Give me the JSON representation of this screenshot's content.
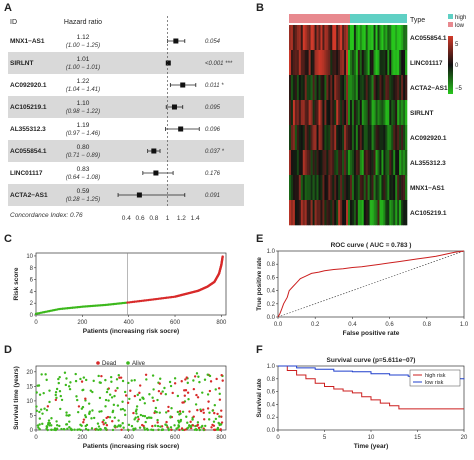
{
  "panels": {
    "a": "A",
    "b": "B",
    "c": "C",
    "d": "D",
    "e": "E",
    "f": "F"
  },
  "forest": {
    "header_id": "ID",
    "header_hr": "Hazard ratio",
    "rows": [
      {
        "id": "MNX1−AS1",
        "hr": "1.12",
        "ci": "(1.00 − 1.25)",
        "p": "0.054",
        "est": 1.12,
        "lo": 1.0,
        "hi": 1.25,
        "shaded": false
      },
      {
        "id": "SIRLNT",
        "hr": "1.01",
        "ci": "(1.00 − 1.01)",
        "p": "<0.001 ***",
        "est": 1.01,
        "lo": 1.0,
        "hi": 1.01,
        "shaded": true
      },
      {
        "id": "AC092920.1",
        "hr": "1.22",
        "ci": "(1.04 − 1.41)",
        "p": "0.011 *",
        "est": 1.22,
        "lo": 1.04,
        "hi": 1.41,
        "shaded": false
      },
      {
        "id": "AC105219.1",
        "hr": "1.10",
        "ci": "(0.98 − 1.22)",
        "p": "0.095",
        "est": 1.1,
        "lo": 0.98,
        "hi": 1.22,
        "shaded": true
      },
      {
        "id": "AL355312.3",
        "hr": "1.19",
        "ci": "(0.97 − 1.46)",
        "p": "0.096",
        "est": 1.19,
        "lo": 0.97,
        "hi": 1.46,
        "shaded": false
      },
      {
        "id": "AC055854.1",
        "hr": "0.80",
        "ci": "(0.71 − 0.89)",
        "p": "0.037 *",
        "est": 0.8,
        "lo": 0.71,
        "hi": 0.89,
        "shaded": true
      },
      {
        "id": "LINC01117",
        "hr": "0.83",
        "ci": "(0.64 − 1.08)",
        "p": "0.176",
        "est": 0.83,
        "lo": 0.64,
        "hi": 1.08,
        "shaded": false
      },
      {
        "id": "ACTA2−AS1",
        "hr": "0.59",
        "ci": "(0.28 − 1.25)",
        "p": "0.091",
        "est": 0.59,
        "lo": 0.28,
        "hi": 1.25,
        "shaded": true
      }
    ],
    "concordance": "Concordance Index: 0.76",
    "ticks": [
      "0.4",
      "0.6",
      "0.8",
      "1",
      "1.2",
      "1.4"
    ],
    "tick_values": [
      0.4,
      0.6,
      0.8,
      1.0,
      1.2,
      1.4
    ],
    "xlim": [
      0.25,
      1.5
    ]
  },
  "heatmap": {
    "type_label": "Type",
    "legend_high": "high",
    "legend_low": "low",
    "scale": [
      "5",
      "0",
      "−5"
    ],
    "genes": [
      "AC055854.1",
      "LINC01117",
      "ACTA2−AS1",
      "SIRLNT",
      "AC092920.1",
      "AL355312.3",
      "MNX1−AS1",
      "AC105219.1"
    ],
    "colors": {
      "high": "#e8898f",
      "low": "#5fd0c4",
      "pos": "#d23a2a",
      "neg": "#27c61c",
      "mid": "#111111"
    }
  },
  "chart_data": [
    {
      "type": "scatter",
      "panel": "C",
      "xlabel": "Patients (increasing risk socre)",
      "ylabel": "Risk score",
      "xticks": [
        "0",
        "200",
        "400",
        "600",
        "800"
      ],
      "yticks": [
        "0",
        "2",
        "4",
        "6",
        "8",
        "10"
      ],
      "xlim": [
        0,
        820
      ],
      "ylim": [
        0,
        10.5
      ],
      "cutoff_x": 395,
      "series": [
        {
          "color": "#3cb81c",
          "x": [
            0,
            100,
            200,
            300,
            395
          ],
          "y": [
            0.2,
            1.0,
            1.4,
            1.7,
            2.1
          ]
        },
        {
          "color": "#d82a2a",
          "x": [
            395,
            500,
            600,
            650,
            700,
            740,
            770,
            790,
            800,
            806
          ],
          "y": [
            2.1,
            2.6,
            3.1,
            3.6,
            4.1,
            4.8,
            5.6,
            7.0,
            8.5,
            10
          ]
        }
      ]
    },
    {
      "type": "scatter",
      "panel": "D",
      "xlabel": "Patients (increasing risk socre)",
      "ylabel": "Survival time (years)",
      "xticks": [
        "0",
        "200",
        "400",
        "600",
        "800"
      ],
      "yticks": [
        "0",
        "5",
        "10",
        "15",
        "20"
      ],
      "xlim": [
        0,
        820
      ],
      "ylim": [
        0,
        22
      ],
      "cutoff_x": 395,
      "legend": [
        "Dead",
        "Alive"
      ],
      "colors": {
        "dead": "#d82a2a",
        "alive": "#3cb81c"
      }
    },
    {
      "type": "line",
      "panel": "E",
      "title": "ROC curve ( AUC = 0.783 )",
      "xlabel": "False positive rate",
      "ylabel": "True positive rate",
      "xticks": [
        "0.0",
        "0.2",
        "0.4",
        "0.6",
        "0.8",
        "1.0"
      ],
      "yticks": [
        "0.0",
        "0.2",
        "0.4",
        "0.6",
        "0.8",
        "1.0"
      ],
      "xlim": [
        0,
        1
      ],
      "ylim": [
        0,
        1
      ],
      "color": "#cc1f1f",
      "x": [
        0,
        0.01,
        0.02,
        0.03,
        0.05,
        0.06,
        0.08,
        0.1,
        0.12,
        0.15,
        0.18,
        0.22,
        0.25,
        0.3,
        0.35,
        0.4,
        0.45,
        0.5,
        0.55,
        0.6,
        0.65,
        0.7,
        0.75,
        0.8,
        0.85,
        0.9,
        0.95,
        1.0
      ],
      "y": [
        0,
        0.05,
        0.12,
        0.2,
        0.3,
        0.4,
        0.46,
        0.52,
        0.58,
        0.62,
        0.66,
        0.68,
        0.7,
        0.72,
        0.73,
        0.75,
        0.76,
        0.78,
        0.8,
        0.82,
        0.84,
        0.86,
        0.88,
        0.9,
        0.92,
        0.95,
        0.98,
        1.0
      ]
    },
    {
      "type": "line",
      "panel": "F",
      "title": "Survival curve (p=5.611e−07)",
      "xlabel": "Time (year)",
      "ylabel": "Survival rate",
      "xticks": [
        "0",
        "5",
        "10",
        "15",
        "20"
      ],
      "yticks": [
        "0.0",
        "0.2",
        "0.4",
        "0.6",
        "0.8",
        "1.0"
      ],
      "xlim": [
        0,
        20
      ],
      "ylim": [
        0,
        1
      ],
      "legend": [
        "high risk",
        "low risk"
      ],
      "series": [
        {
          "name": "high risk",
          "color": "#cc1f1f",
          "x": [
            0,
            1,
            2,
            3,
            4,
            5,
            6,
            7,
            8,
            9,
            10,
            11,
            12,
            13,
            14,
            15,
            20
          ],
          "y": [
            1.0,
            0.93,
            0.86,
            0.8,
            0.73,
            0.68,
            0.64,
            0.61,
            0.58,
            0.52,
            0.47,
            0.42,
            0.38,
            0.33,
            0.33,
            0.33,
            0.33
          ]
        },
        {
          "name": "low risk",
          "color": "#1f3fcc",
          "x": [
            0,
            2,
            4,
            6,
            8,
            10,
            12,
            14,
            16,
            18,
            20
          ],
          "y": [
            1.0,
            0.97,
            0.95,
            0.92,
            0.91,
            0.88,
            0.86,
            0.84,
            0.82,
            0.8,
            0.79
          ]
        }
      ]
    }
  ]
}
